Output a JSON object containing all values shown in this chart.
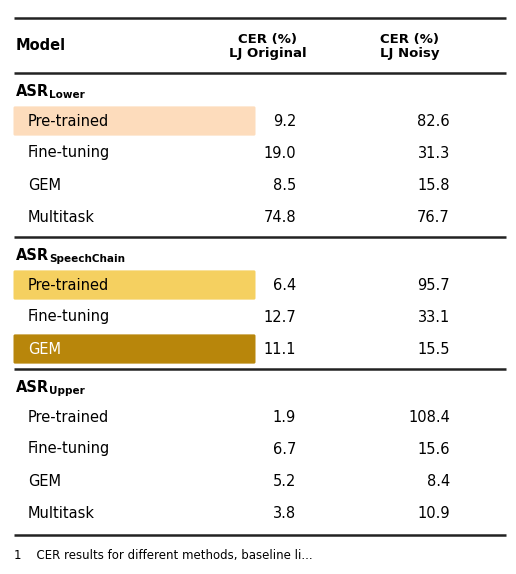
{
  "col_headers_line1": [
    "Model",
    "CER (%)",
    "CER (%)"
  ],
  "col_headers_line2": [
    "",
    "LJ Original",
    "LJ Noisy"
  ],
  "sections": [
    {
      "header": "ASR",
      "header_sub": "Lower",
      "rows": [
        {
          "label": "Pre-trained",
          "cer_orig": "9.2",
          "cer_noisy": "82.6",
          "highlight": "light_orange"
        },
        {
          "label": "Fine-tuning",
          "cer_orig": "19.0",
          "cer_noisy": "31.3",
          "highlight": "none"
        },
        {
          "label": "GEM",
          "cer_orig": "8.5",
          "cer_noisy": "15.8",
          "highlight": "none"
        },
        {
          "label": "Multitask",
          "cer_orig": "74.8",
          "cer_noisy": "76.7",
          "highlight": "none"
        }
      ]
    },
    {
      "header": "ASR",
      "header_sub": "SpeechChain",
      "rows": [
        {
          "label": "Pre-trained",
          "cer_orig": "6.4",
          "cer_noisy": "95.7",
          "highlight": "light_yellow"
        },
        {
          "label": "Fine-tuning",
          "cer_orig": "12.7",
          "cer_noisy": "33.1",
          "highlight": "none"
        },
        {
          "label": "GEM",
          "cer_orig": "11.1",
          "cer_noisy": "15.5",
          "highlight": "dark_gold"
        }
      ]
    },
    {
      "header": "ASR",
      "header_sub": "Upper",
      "rows": [
        {
          "label": "Pre-trained",
          "cer_orig": "1.9",
          "cer_noisy": "108.4",
          "highlight": "none"
        },
        {
          "label": "Fine-tuning",
          "cer_orig": "6.7",
          "cer_noisy": "15.6",
          "highlight": "none"
        },
        {
          "label": "GEM",
          "cer_orig": "5.2",
          "cer_noisy": "8.4",
          "highlight": "none"
        },
        {
          "label": "Multitask",
          "cer_orig": "3.8",
          "cer_noisy": "10.9",
          "highlight": "none"
        }
      ]
    }
  ],
  "highlight_colors": {
    "light_orange": "#FDDCBC",
    "light_yellow": "#F5D060",
    "dark_gold": "#B8860B",
    "none": null
  },
  "bg_color": "#ffffff",
  "line_color": "#222222",
  "caption": "1    CER results for different methods, baseline li..."
}
